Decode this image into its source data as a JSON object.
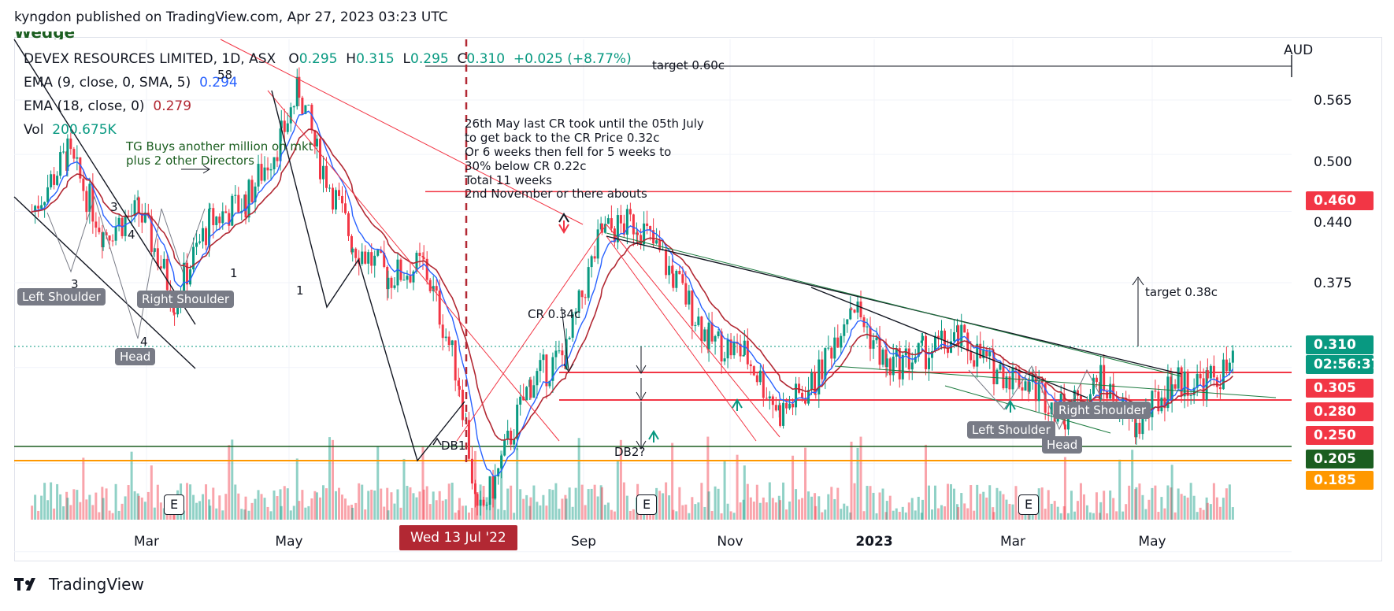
{
  "header": {
    "publisher_line": "kyngdon published on TradingView.com, Apr 27, 2023 03:23 UTC"
  },
  "footer": {
    "brand": "TradingView"
  },
  "legend": {
    "symbol": "DEVEX RESOURCES LIMITED, 1D, ASX",
    "open_label": "O",
    "open": "0.295",
    "high_label": "H",
    "high": "0.315",
    "low_label": "L",
    "low": "0.295",
    "close_label": "C",
    "close": "0.310",
    "change": "+0.025 (+8.77%)",
    "ema1_label": "EMA (9, close, 0, SMA, 5)",
    "ema1_value": "0.294",
    "ema2_label": "EMA (18, close, 0)",
    "ema2_value": "0.279",
    "vol_label": "Vol",
    "vol_value": "200.675K"
  },
  "currency": "AUD",
  "colors": {
    "up": "#089981",
    "down": "#f23645",
    "ema_fast": "#2962ff",
    "ema_slow": "#b22833"
  },
  "notes": {
    "target_top": "target 0.60c",
    "cr_note_1": "26th May last CR took until the 05th July",
    "cr_note_2": "to get back to the CR Price 0.32c",
    "cr_note_3": "Or 6 weeks then fell for 5 weeks to",
    "cr_note_4": "30% below CR 0.22c",
    "cr_note_5": "Total 11 weeks",
    "cr_note_6": "2nd November or there abouts",
    "tg_note_1": "TG Buys another million on mkt",
    "tg_note_2": "plus 2 other Directors",
    "target_right": "target 0.38c",
    "cr_price": "CR 0.34c",
    "db1": "DB1",
    "db2": "DB2?",
    "wedge": "Wedge",
    "wave_1a": "1",
    "wave_1b": "1",
    "wave_3a": "3",
    "wave_3b": "3",
    "wave_4a": "4",
    "wave_4b": "4",
    "wave_58": "58"
  },
  "pattern_labels": {
    "left_shoulder_1": "Left Shoulder",
    "right_shoulder_1": "Right Shoulder",
    "head_1": "Head",
    "left_shoulder_2": "Left Shoulder",
    "right_shoulder_2": "Right Shoulder",
    "head_2": "Head"
  },
  "price_tags": [
    {
      "label": "0.460",
      "color": "#f23645"
    },
    {
      "label": "0.310",
      "color": "#089981"
    },
    {
      "label": "02:56:37",
      "color": "#089981"
    },
    {
      "label": "0.305",
      "color": "#f23645"
    },
    {
      "label": "0.280",
      "color": "#f23645"
    },
    {
      "label": "0.250",
      "color": "#f23645"
    },
    {
      "label": "0.205",
      "color": "#1b5e20"
    },
    {
      "label": "0.185",
      "color": "#ff9800"
    }
  ],
  "earnings_badge": "E",
  "cursor_date": "Wed 13 Jul '22",
  "chart_data": {
    "type": "candlestick",
    "symbol": "DEVEX RESOURCES LIMITED",
    "interval": "1D",
    "exchange": "ASX",
    "currency": "AUD",
    "y_axis_ticks": [
      "0.565",
      "0.500",
      "0.440",
      "0.375"
    ],
    "x_axis_ticks": [
      "Mar",
      "May",
      "Sep",
      "Nov",
      "2023",
      "Mar",
      "May"
    ],
    "ylim": [
      0.17,
      0.62
    ],
    "log_scale": true,
    "horizontal_levels": [
      0.46,
      0.305,
      0.28,
      0.25,
      0.205,
      0.185
    ],
    "last_price": 0.31,
    "approx_close_path": [
      [
        "2022-01-10",
        0.44
      ],
      [
        "2022-01-24",
        0.5
      ],
      [
        "2022-02-07",
        0.42
      ],
      [
        "2022-02-21",
        0.44
      ],
      [
        "2022-03-07",
        0.36
      ],
      [
        "2022-03-21",
        0.43
      ],
      [
        "2022-04-04",
        0.45
      ],
      [
        "2022-04-18",
        0.52
      ],
      [
        "2022-04-25",
        0.58
      ],
      [
        "2022-05-02",
        0.5
      ],
      [
        "2022-05-16",
        0.41
      ],
      [
        "2022-05-30",
        0.38
      ],
      [
        "2022-06-13",
        0.39
      ],
      [
        "2022-06-27",
        0.3
      ],
      [
        "2022-07-04",
        0.22
      ],
      [
        "2022-07-11",
        0.24
      ],
      [
        "2022-07-25",
        0.3
      ],
      [
        "2022-08-08",
        0.32
      ],
      [
        "2022-08-22",
        0.42
      ],
      [
        "2022-09-05",
        0.43
      ],
      [
        "2022-09-19",
        0.38
      ],
      [
        "2022-10-03",
        0.33
      ],
      [
        "2022-10-17",
        0.32
      ],
      [
        "2022-10-31",
        0.28
      ],
      [
        "2022-11-14",
        0.3
      ],
      [
        "2022-11-28",
        0.36
      ],
      [
        "2022-12-12",
        0.31
      ],
      [
        "2022-12-26",
        0.32
      ],
      [
        "2023-01-09",
        0.33
      ],
      [
        "2023-01-23",
        0.31
      ],
      [
        "2023-02-06",
        0.3
      ],
      [
        "2023-02-20",
        0.28
      ],
      [
        "2023-03-06",
        0.3
      ],
      [
        "2023-03-20",
        0.27
      ],
      [
        "2023-04-03",
        0.3
      ],
      [
        "2023-04-17",
        0.3
      ],
      [
        "2023-04-27",
        0.31
      ]
    ]
  }
}
